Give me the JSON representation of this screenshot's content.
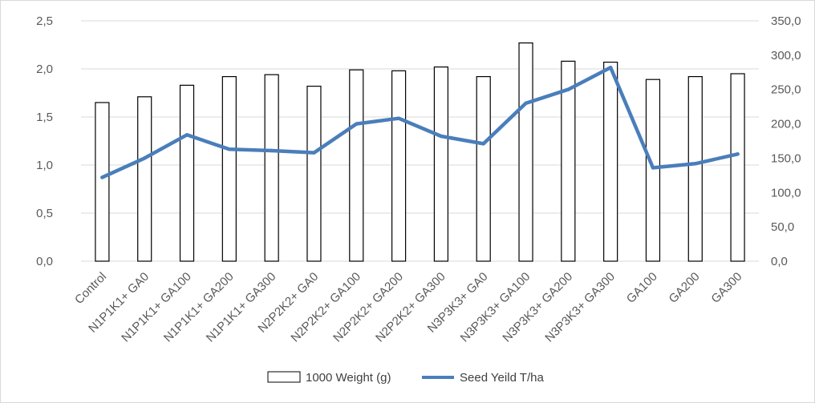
{
  "chart_data": {
    "type": "bar",
    "categories": [
      "Control",
      "N1P1K1+ GA0",
      "N1P1K1+ GA100",
      "N1P1K1+ GA200",
      "N1P1K1+ GA300",
      "N2P2K2+ GA0",
      "N2P2K2+ GA100",
      "N2P2K2+ GA200",
      "N2P2K2+ GA300",
      "N3P3K3+ GA0",
      "N3P3K3+ GA100",
      "N3P3K3+ GA200",
      "N3P3K3+ GA300",
      "GA100",
      "GA200",
      "GA300"
    ],
    "series": [
      {
        "name": "1000 Weight (g)",
        "type": "bar",
        "axis": "left",
        "color": "#000000",
        "fill": "#ffffff",
        "values": [
          1.65,
          1.71,
          1.83,
          1.92,
          1.94,
          1.82,
          1.99,
          1.98,
          2.02,
          1.92,
          2.27,
          2.08,
          2.07,
          1.89,
          1.92,
          1.95
        ]
      },
      {
        "name": "Seed Yeild T/ha",
        "type": "line",
        "axis": "right",
        "color": "#4a7ebb",
        "values": [
          122,
          150,
          184,
          163,
          161,
          158,
          200,
          208,
          182,
          171,
          230,
          250,
          282,
          136,
          142,
          156
        ]
      }
    ],
    "y_left": {
      "min": 0,
      "max": 2.5,
      "ticks": [
        "0,0",
        "0,5",
        "1,0",
        "1,5",
        "2,0",
        "2,5"
      ]
    },
    "y_right": {
      "min": 0,
      "max": 350,
      "ticks": [
        "0,0",
        "50,0",
        "100,0",
        "150,0",
        "200,0",
        "250,0",
        "300,0",
        "350,0"
      ]
    },
    "grid": true,
    "legend_position": "bottom"
  }
}
